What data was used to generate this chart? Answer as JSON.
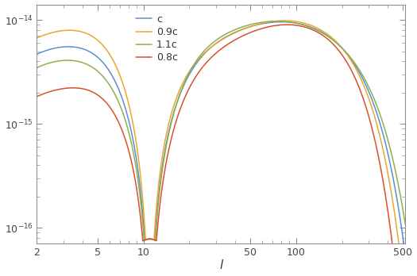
{
  "title": "",
  "xlabel": "l",
  "ylabel": "",
  "xlim": [
    2,
    500
  ],
  "ylim_log": [
    -16.15,
    -13.85
  ],
  "yticks": [
    1e-16,
    1e-15,
    1e-14
  ],
  "xticks": [
    2,
    5,
    10,
    50,
    100,
    500
  ],
  "legend_labels": [
    "c",
    "0.9c",
    "1.1c",
    "0.8c"
  ],
  "line_colors": [
    "#5b8fcc",
    "#e8a830",
    "#8db050",
    "#d95030"
  ],
  "background_color": "#ffffff",
  "line_width": 1.1,
  "ct_values": [
    1.0,
    0.9,
    1.1,
    0.8
  ]
}
